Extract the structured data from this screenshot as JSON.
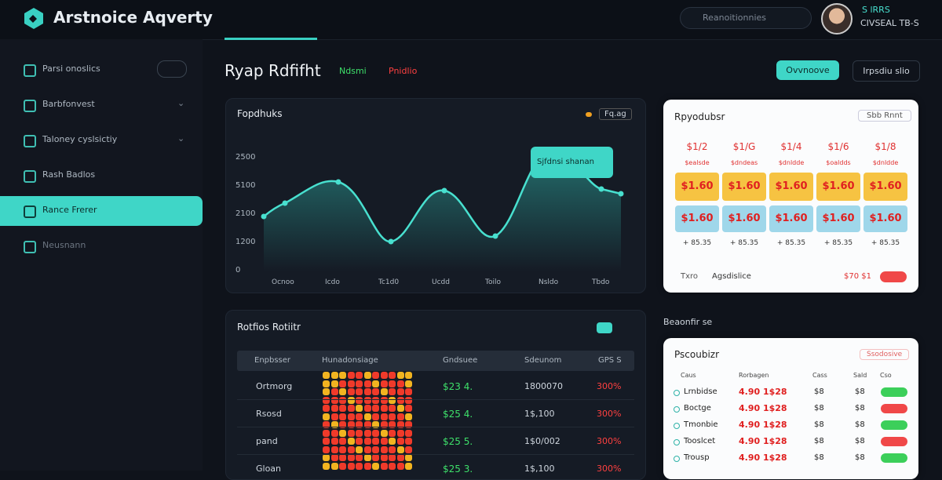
{
  "header": {
    "title": "Arstnoice Aqverty",
    "search": "Reanoitionnies",
    "user_name": "S lRRS",
    "user_role": "CIVSEAL TB-S"
  },
  "sidebar": [
    "Parsi onoslics",
    "Barbfonvest",
    "Taloney cyslsictiy",
    "Rash Badlos",
    "Rance Frerer",
    "Neusnann"
  ],
  "page": {
    "title": "Ryap Rdfifht",
    "tag_green": "Ndsmi",
    "tag_red": "Pnidlio",
    "button_primary": "Ovvnoove",
    "button_secondary": "Irpsdiu slio"
  },
  "trend_card": {
    "title": "Fopdhuks",
    "badge": "Fq.ag",
    "tooltip": "Sjfdnsi shanan",
    "y_labels": [
      "2500",
      "5100",
      "2100",
      "1200",
      "0"
    ],
    "x_labels": [
      "Ocnoo",
      "Icdo",
      "Tc1d0",
      "Ucdd",
      "Toilo",
      "Nsldo",
      "Tbdo"
    ]
  },
  "price_card": {
    "title": "Rpyodubsr",
    "button": "Sbb Rnnt",
    "columns": [
      {
        "label": "$1/2",
        "sub": "$ealsde",
        "price": "$1.60",
        "alt": "$1.60",
        "change": "+ 85.35"
      },
      {
        "label": "$1/G",
        "sub": "$dndeas",
        "price": "$1.60",
        "alt": "$1.60",
        "change": "+ 85.35"
      },
      {
        "label": "$1/4",
        "sub": "$dnldde",
        "price": "$1.60",
        "alt": "$1.60",
        "change": "+ 85.35"
      },
      {
        "label": "$1/6",
        "sub": "$oaldds",
        "price": "$1.60",
        "alt": "$1.60",
        "change": "+ 85.35"
      },
      {
        "label": "$1/8",
        "sub": "$dnldde",
        "price": "$1.60",
        "alt": "$1.60",
        "change": "+ 85.35"
      }
    ],
    "footer_left": "Txro",
    "footer_mid": "Agsdislice",
    "footer_right": "$70 $1"
  },
  "section_label": "Beaonfir se",
  "table_card": {
    "title": "Rotfios Rotiitr",
    "columns": [
      "Enpbsser",
      "Hunadonsiage",
      "Gndsuee",
      "Sdeunom",
      "GPS S"
    ],
    "rows": [
      [
        "Ortmorg",
        "$23 4.",
        "1800070",
        "300%"
      ],
      [
        "Rsosd",
        "$25 4.",
        "1$,100",
        "300%"
      ],
      [
        "pand",
        "$25 5.",
        "1$0/002",
        "300%"
      ],
      [
        "Gloan",
        "$25 3.",
        "1$,100",
        "300%"
      ]
    ]
  },
  "orders_card": {
    "title": "Pscoubizr",
    "badge": "Ssodosive",
    "columns": [
      "Caus",
      "Rorbagen",
      "Cass",
      "Sald",
      "Cso"
    ],
    "rows": [
      [
        "Lrnbidse",
        "4.90 1$28",
        "$8",
        "$8"
      ],
      [
        "Boctge",
        "4.90 1$28",
        "$8",
        "$8"
      ],
      [
        "Tmonbie",
        "4.90 1$28",
        "$8",
        "$8"
      ],
      [
        "Tooslcet",
        "4.90 1$28",
        "$8",
        "$8"
      ],
      [
        "Trousp",
        "4.90 1$28",
        "$8",
        "$8"
      ]
    ]
  }
}
